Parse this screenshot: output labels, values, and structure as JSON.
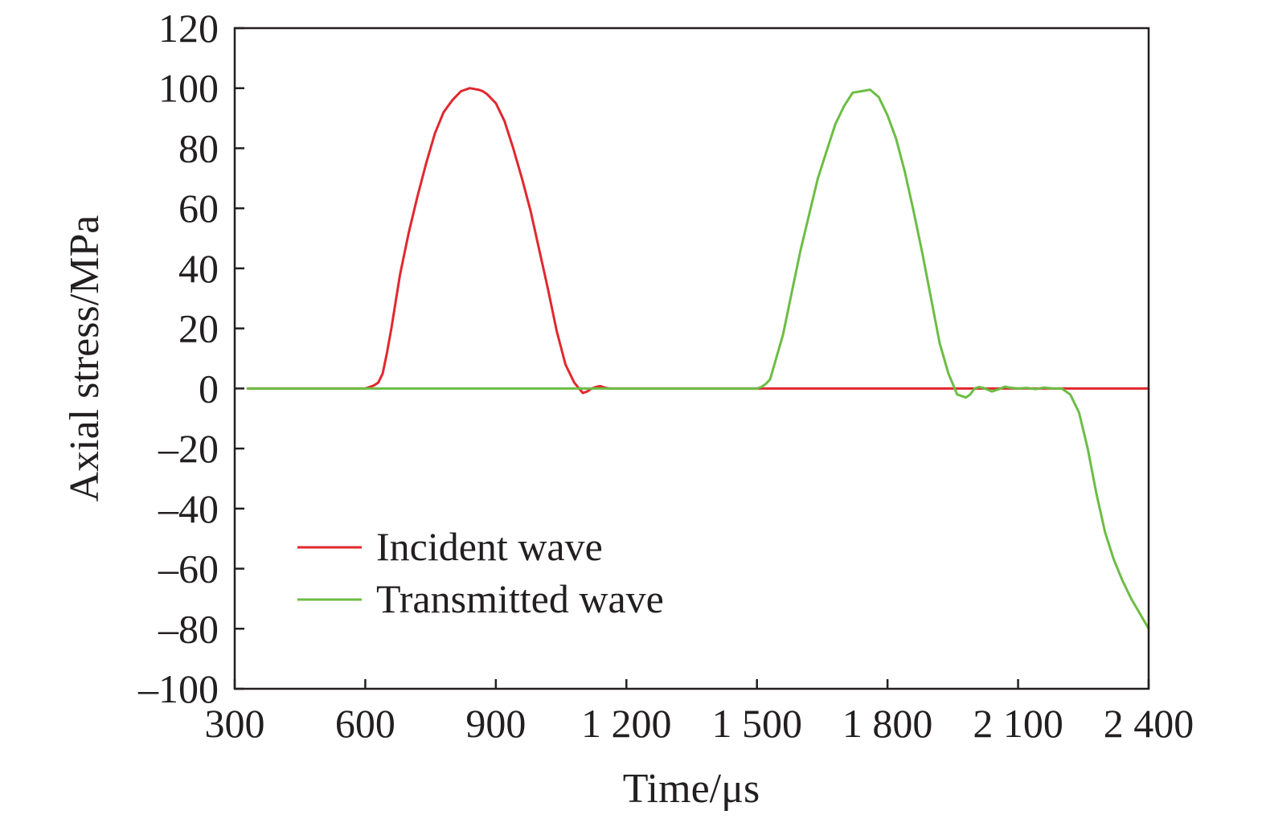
{
  "chart_data": {
    "type": "line",
    "xlabel": "Time/μs",
    "ylabel": "Axial stress/MPa",
    "xlim": [
      300,
      2400
    ],
    "ylim": [
      -100,
      120
    ],
    "x_ticks": [
      300,
      600,
      900,
      1200,
      1500,
      1800,
      2100,
      2400
    ],
    "x_tick_labels": [
      "300",
      "600",
      "900",
      "1 200",
      "1 500",
      "1 800",
      "2 100",
      "2 400"
    ],
    "y_ticks": [
      -100,
      -80,
      -60,
      -40,
      -20,
      0,
      20,
      40,
      60,
      80,
      100,
      120
    ],
    "y_tick_labels": [
      "–100",
      "–80",
      "–60",
      "–40",
      "–20",
      "0",
      "20",
      "40",
      "60",
      "80",
      "100",
      "120"
    ],
    "grid": false,
    "legend_position": "bottom-left",
    "series": [
      {
        "name": "Incident wave",
        "color": "#e0282e",
        "x": [
          330,
          600,
          620,
          630,
          640,
          650,
          660,
          680,
          700,
          720,
          740,
          760,
          780,
          800,
          820,
          840,
          860,
          870,
          880,
          900,
          920,
          940,
          960,
          980,
          1000,
          1020,
          1040,
          1060,
          1080,
          1100,
          1110,
          1120,
          1130,
          1140,
          1150,
          1160,
          1180,
          1200,
          1250,
          1300,
          1350,
          1400,
          1500,
          1600,
          1700,
          1800,
          1900,
          2000,
          2100,
          2200,
          2300,
          2400
        ],
        "y": [
          0,
          0,
          1,
          2,
          5,
          12,
          20,
          38,
          52,
          64,
          75,
          85,
          92,
          96,
          99,
          100,
          99.5,
          99,
          98,
          95,
          89,
          80,
          70,
          59,
          46,
          33,
          19,
          8,
          2,
          -1.5,
          -1,
          0,
          0.5,
          0.8,
          0.3,
          0,
          0,
          0,
          0,
          0,
          0,
          0,
          0,
          0,
          0,
          0,
          0,
          0,
          0,
          0,
          0,
          0
        ]
      },
      {
        "name": "Transmitted wave",
        "color": "#6cbd45",
        "x": [
          330,
          600,
          900,
          1200,
          1400,
          1480,
          1500,
          1510,
          1520,
          1530,
          1540,
          1560,
          1580,
          1600,
          1620,
          1640,
          1660,
          1680,
          1700,
          1720,
          1740,
          1760,
          1780,
          1800,
          1820,
          1840,
          1860,
          1880,
          1900,
          1920,
          1940,
          1960,
          1980,
          1990,
          2000,
          2010,
          2020,
          2040,
          2060,
          2070,
          2080,
          2100,
          2120,
          2140,
          2160,
          2180,
          2200,
          2220,
          2240,
          2260,
          2280,
          2300,
          2320,
          2340,
          2360,
          2380,
          2400
        ],
        "y": [
          0,
          0,
          0,
          0,
          0,
          0,
          0,
          0.5,
          1.5,
          3,
          8,
          18,
          32,
          46,
          58,
          70,
          79,
          88,
          94,
          98.5,
          99,
          99.5,
          97,
          91,
          83,
          72,
          59,
          45,
          30,
          15,
          5,
          -2,
          -3,
          -2,
          0,
          0.5,
          0.2,
          -1,
          0,
          0.6,
          0.3,
          0,
          0.2,
          -0.2,
          0.3,
          0,
          0,
          -2,
          -8,
          -20,
          -35,
          -48,
          -57,
          -64,
          -70,
          -75,
          -80
        ]
      }
    ]
  }
}
